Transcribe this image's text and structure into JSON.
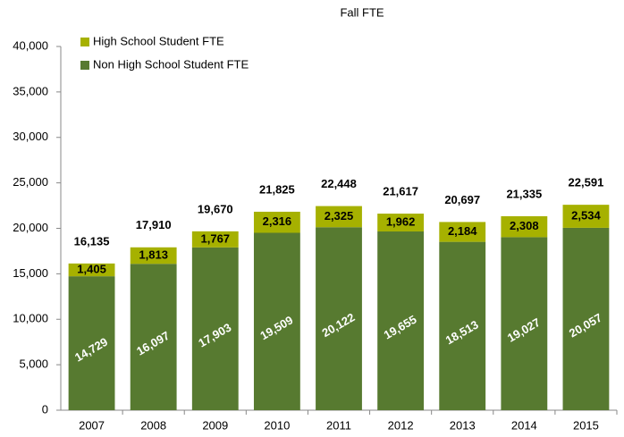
{
  "chart_data": {
    "type": "stacked_bar",
    "title": "Fall FTE",
    "categories": [
      "2007",
      "2008",
      "2009",
      "2010",
      "2011",
      "2012",
      "2013",
      "2014",
      "2015"
    ],
    "series": [
      {
        "name": "Non High School Student FTE",
        "color": "#577a30",
        "values": [
          14729,
          16097,
          17903,
          19509,
          20122,
          19655,
          18513,
          19027,
          20057
        ],
        "value_labels": [
          "14,729",
          "16,097",
          "17,903",
          "19,509",
          "20,122",
          "19,655",
          "18,513",
          "19,027",
          "20,057"
        ]
      },
      {
        "name": "High School Student FTE",
        "color": "#a6b100",
        "values": [
          1405,
          1813,
          1767,
          2316,
          2325,
          1962,
          2184,
          2308,
          2534
        ],
        "value_labels": [
          "1,405",
          "1,813",
          "1,767",
          "2,316",
          "2,325",
          "1,962",
          "2,184",
          "2,308",
          "2,534"
        ]
      }
    ],
    "totals": [
      16135,
      17910,
      19670,
      21825,
      22448,
      21617,
      20697,
      21335,
      22591
    ],
    "totals_labels": [
      "16,135",
      "17,910",
      "19,670",
      "21,825",
      "22,448",
      "21,617",
      "20,697",
      "21,335",
      "22,591"
    ],
    "ylim": [
      0,
      40000
    ],
    "yticks": [
      0,
      {
        "value": 5000,
        "label": "5,000"
      },
      {
        "value": 10000,
        "label": "10,000"
      },
      {
        "value": 15000,
        "label": "15,000"
      },
      {
        "value": 20000,
        "label": "20,000"
      },
      {
        "value": 25000,
        "label": "25,000"
      },
      {
        "value": 30000,
        "label": "30,000"
      },
      {
        "value": 35000,
        "label": "35,000"
      },
      {
        "value": 40000,
        "label": "40,000"
      }
    ],
    "grid": false,
    "legend": "upper left"
  }
}
